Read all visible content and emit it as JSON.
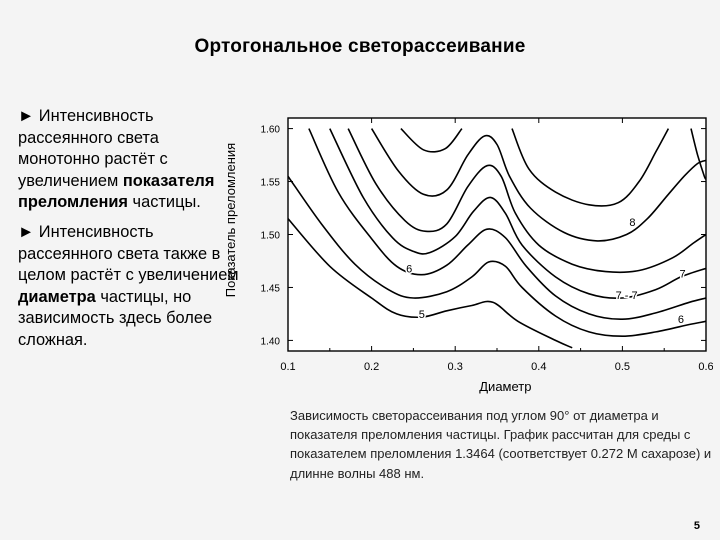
{
  "slide": {
    "title": "Ортогональное светорассеивание",
    "bullets": [
      {
        "marker": "►",
        "parts": [
          {
            "text": " Интенсивность рассеянного света монотонно растёт с увеличением ",
            "bold": false
          },
          {
            "text": "показателя преломления",
            "bold": true
          },
          {
            "text": " частицы.",
            "bold": false
          }
        ]
      },
      {
        "marker": "►",
        "parts": [
          {
            "text": " Интенсивность рассеянного света также в целом растёт с увеличением ",
            "bold": false
          },
          {
            "text": "диаметра",
            "bold": true
          },
          {
            "text": " частицы, но зависимость здесь более сложная.",
            "bold": false
          }
        ]
      }
    ],
    "caption": "Зависимость светорассеивания под углом 90° от диаметра и показателя преломления частицы. График рассчитан для среды с показателем преломления 1.3464 (соответствует 0.272 М сахарозе) и длинне волны 488 нм.",
    "page_number": "5"
  },
  "chart_data": {
    "type": "contour",
    "xlabel": "Диаметр",
    "ylabel": "Показатель преломления",
    "xlim": [
      0.1,
      0.6
    ],
    "ylim": [
      1.39,
      1.61
    ],
    "x_ticks": [
      "0.1",
      "0.2",
      "0.3",
      "0.4",
      "0.5",
      "0.6"
    ],
    "y_ticks": [
      "1.40",
      "1.45",
      "1.50",
      "1.55",
      "1.60"
    ],
    "line_color": "#000000",
    "contours": [
      {
        "points": [
          [
            0.1,
            1.515
          ],
          [
            0.15,
            1.47
          ],
          [
            0.2,
            1.44
          ],
          [
            0.23,
            1.425
          ],
          [
            0.26,
            1.422
          ],
          [
            0.29,
            1.428
          ],
          [
            0.32,
            1.433
          ],
          [
            0.345,
            1.436
          ],
          [
            0.375,
            1.418
          ],
          [
            0.42,
            1.4
          ],
          [
            0.44,
            1.393
          ]
        ]
      },
      {
        "points": [
          [
            0.1,
            1.555
          ],
          [
            0.14,
            1.51
          ],
          [
            0.18,
            1.472
          ],
          [
            0.22,
            1.448
          ],
          [
            0.25,
            1.44
          ],
          [
            0.29,
            1.446
          ],
          [
            0.32,
            1.46
          ],
          [
            0.34,
            1.474
          ],
          [
            0.36,
            1.47
          ],
          [
            0.38,
            1.45
          ],
          [
            0.42,
            1.423
          ],
          [
            0.46,
            1.408
          ],
          [
            0.5,
            1.404
          ],
          [
            0.54,
            1.408
          ],
          [
            0.58,
            1.415
          ],
          [
            0.6,
            1.418
          ]
        ]
      },
      {
        "points": [
          [
            0.125,
            1.6
          ],
          [
            0.16,
            1.54
          ],
          [
            0.2,
            1.496
          ],
          [
            0.23,
            1.47
          ],
          [
            0.26,
            1.462
          ],
          [
            0.29,
            1.471
          ],
          [
            0.315,
            1.49
          ],
          [
            0.338,
            1.505
          ],
          [
            0.36,
            1.497
          ],
          [
            0.385,
            1.47
          ],
          [
            0.42,
            1.442
          ],
          [
            0.46,
            1.425
          ],
          [
            0.5,
            1.42
          ],
          [
            0.54,
            1.426
          ],
          [
            0.58,
            1.436
          ],
          [
            0.6,
            1.44
          ]
        ]
      },
      {
        "points": [
          [
            0.15,
            1.6
          ],
          [
            0.19,
            1.535
          ],
          [
            0.225,
            1.497
          ],
          [
            0.25,
            1.484
          ],
          [
            0.27,
            1.483
          ],
          [
            0.3,
            1.498
          ],
          [
            0.322,
            1.522
          ],
          [
            0.342,
            1.535
          ],
          [
            0.36,
            1.52
          ],
          [
            0.38,
            1.49
          ],
          [
            0.42,
            1.46
          ],
          [
            0.46,
            1.444
          ],
          [
            0.5,
            1.44
          ],
          [
            0.54,
            1.448
          ],
          [
            0.57,
            1.46
          ],
          [
            0.6,
            1.468
          ]
        ]
      },
      {
        "points": [
          [
            0.172,
            1.6
          ],
          [
            0.205,
            1.548
          ],
          [
            0.24,
            1.513
          ],
          [
            0.265,
            1.503
          ],
          [
            0.29,
            1.51
          ],
          [
            0.315,
            1.545
          ],
          [
            0.338,
            1.565
          ],
          [
            0.355,
            1.555
          ],
          [
            0.372,
            1.52
          ],
          [
            0.4,
            1.49
          ],
          [
            0.44,
            1.472
          ],
          [
            0.48,
            1.465
          ],
          [
            0.52,
            1.466
          ],
          [
            0.56,
            1.478
          ],
          [
            0.585,
            1.492
          ],
          [
            0.6,
            1.5
          ]
        ]
      },
      {
        "points": [
          [
            0.2,
            1.6
          ],
          [
            0.232,
            1.56
          ],
          [
            0.262,
            1.538
          ],
          [
            0.29,
            1.542
          ],
          [
            0.315,
            1.575
          ],
          [
            0.335,
            1.593
          ],
          [
            0.35,
            1.585
          ],
          [
            0.365,
            1.555
          ],
          [
            0.39,
            1.525
          ],
          [
            0.43,
            1.502
          ],
          [
            0.47,
            1.494
          ],
          [
            0.505,
            1.5
          ],
          [
            0.53,
            1.515
          ],
          [
            0.555,
            1.538
          ],
          [
            0.575,
            1.556
          ],
          [
            0.59,
            1.567
          ],
          [
            0.6,
            1.57
          ]
        ]
      },
      {
        "points": [
          [
            0.235,
            1.6
          ],
          [
            0.262,
            1.58
          ],
          [
            0.288,
            1.581
          ],
          [
            0.308,
            1.6
          ]
        ]
      },
      {
        "points": [
          [
            0.368,
            1.6
          ],
          [
            0.388,
            1.562
          ],
          [
            0.42,
            1.54
          ],
          [
            0.46,
            1.528
          ],
          [
            0.495,
            1.53
          ],
          [
            0.52,
            1.55
          ],
          [
            0.54,
            1.578
          ],
          [
            0.555,
            1.6
          ]
        ]
      },
      {
        "points": [
          [
            0.582,
            1.6
          ],
          [
            0.59,
            1.575
          ],
          [
            0.598,
            1.555
          ],
          [
            0.6,
            1.552
          ]
        ]
      }
    ],
    "annotations": [
      {
        "text": "6",
        "x": 0.245,
        "y": 1.468
      },
      {
        "text": "5",
        "x": 0.26,
        "y": 1.425
      },
      {
        "text": "8",
        "x": 0.512,
        "y": 1.512
      },
      {
        "text": "7",
        "x": 0.572,
        "y": 1.463
      },
      {
        "text": "7 - 7",
        "x": 0.505,
        "y": 1.443
      },
      {
        "text": "6",
        "x": 0.57,
        "y": 1.42
      }
    ]
  }
}
